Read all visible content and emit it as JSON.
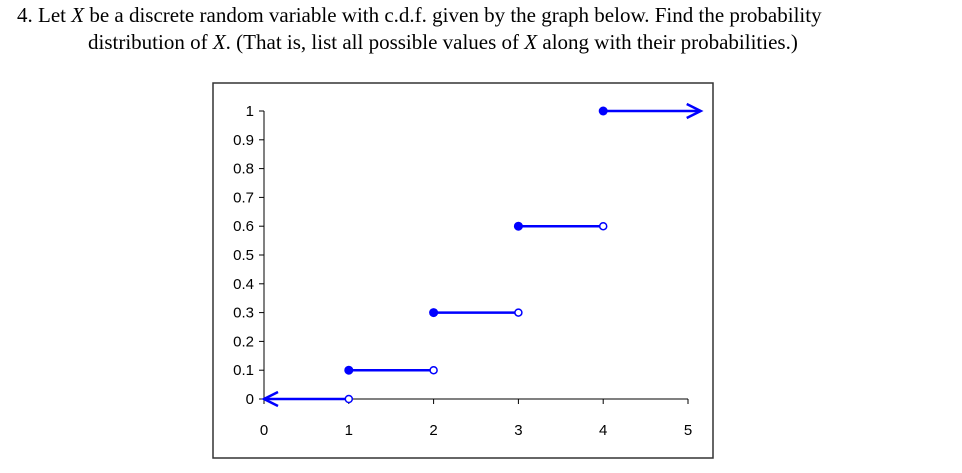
{
  "question": {
    "number": "4.",
    "line1_a": "Let ",
    "var": "X",
    "line1_b": " be a discrete random variable with c.d.f. given by the graph below.  Find the probability",
    "line2_a": "distribution of ",
    "line2_b": ".  (That is, list all possible values of ",
    "line2_c": " along with their probabilities.)"
  },
  "chart_data": {
    "type": "line",
    "title": "",
    "xlabel": "",
    "ylabel": "",
    "xlim": [
      0,
      5
    ],
    "ylim": [
      0,
      1
    ],
    "x_ticks": [
      "0",
      "1",
      "2",
      "3",
      "4",
      "5"
    ],
    "y_ticks": [
      "0",
      "0.1",
      "0.2",
      "0.3",
      "0.4",
      "0.5",
      "0.6",
      "0.7",
      "0.8",
      "0.9",
      "1"
    ],
    "grid": false,
    "color": "#0000ff",
    "steps": [
      {
        "x_start": 1,
        "x_end": 0,
        "y": 0,
        "start": "open",
        "end": "arrow-left"
      },
      {
        "x_start": 1,
        "x_end": 2,
        "y": 0.1,
        "start": "closed",
        "end": "open"
      },
      {
        "x_start": 2,
        "x_end": 3,
        "y": 0.3,
        "start": "closed",
        "end": "open"
      },
      {
        "x_start": 3,
        "x_end": 4,
        "y": 0.6,
        "start": "closed",
        "end": "open"
      },
      {
        "x_start": 4,
        "x_end": 5.15,
        "y": 1,
        "start": "closed",
        "end": "arrow-right"
      }
    ]
  }
}
